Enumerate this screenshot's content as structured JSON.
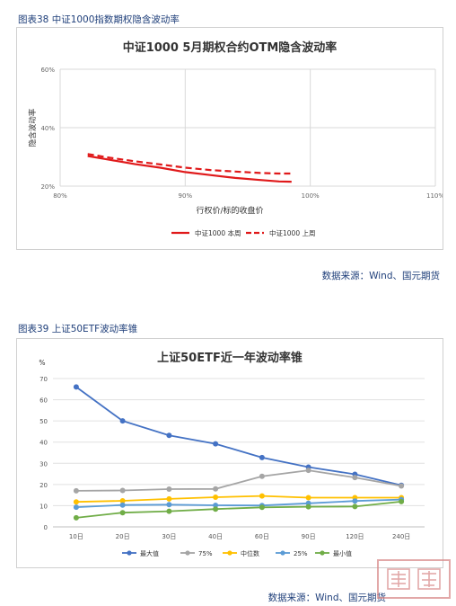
{
  "figure1": {
    "caption": "图表38 中证1000指数期权隐含波动率",
    "source": "数据来源：Wind、国元期货"
  },
  "figure2": {
    "caption": "图表39 上证50ETF波动率锥",
    "source": "数据来源：Wind、国元期货"
  },
  "colors": {
    "caption": "#1f3f7a",
    "series_weekly": "#e0191a",
    "max": "#4472c4",
    "p75": "#a5a5a5",
    "median": "#ffc000",
    "p25": "#5b9bd5",
    "min": "#70ad47"
  },
  "chart_data": [
    {
      "type": "line",
      "title": "中证1000 5月期权合约OTM隐含波动率",
      "xlabel": "行权价/标的收盘价",
      "ylabel": "隐含波动率",
      "xlim": [
        0.8,
        1.1
      ],
      "ylim": [
        0.2,
        0.6
      ],
      "x_ticks": [
        0.8,
        0.9,
        1.0,
        1.1
      ],
      "x_tick_labels": [
        "80%",
        "90%",
        "100%",
        "110%"
      ],
      "y_ticks": [
        0.2,
        0.4,
        0.6
      ],
      "y_tick_labels": [
        "20%",
        "40%",
        "60%"
      ],
      "grid": true,
      "legend_position": "bottom",
      "series": [
        {
          "name": "中证1000 本周",
          "style": "solid",
          "x": [
            0.822,
            0.84,
            0.86,
            0.88,
            0.9,
            0.92,
            0.94,
            0.96,
            0.975,
            0.985
          ],
          "y": [
            0.303,
            0.29,
            0.275,
            0.263,
            0.248,
            0.238,
            0.228,
            0.221,
            0.216,
            0.215
          ]
        },
        {
          "name": "中证1000 上周",
          "style": "dashed",
          "x": [
            0.822,
            0.84,
            0.86,
            0.88,
            0.9,
            0.92,
            0.94,
            0.96,
            0.975,
            0.985
          ],
          "y": [
            0.31,
            0.297,
            0.285,
            0.274,
            0.263,
            0.255,
            0.25,
            0.245,
            0.243,
            0.243
          ]
        }
      ]
    },
    {
      "type": "line",
      "title": "上证50ETF近一年波动率锥",
      "ylabel": "%",
      "categories": [
        "10日",
        "20日",
        "30日",
        "40日",
        "60日",
        "90日",
        "120日",
        "240日"
      ],
      "ylim": [
        0,
        70
      ],
      "y_ticks": [
        0,
        10,
        20,
        30,
        40,
        50,
        60,
        70
      ],
      "grid": true,
      "legend_position": "bottom",
      "series": [
        {
          "name": "最大值",
          "values": [
            66.0,
            50.0,
            43.2,
            39.2,
            32.7,
            28.2,
            24.8,
            19.6
          ]
        },
        {
          "name": "75%",
          "values": [
            17.0,
            17.2,
            17.8,
            17.9,
            23.9,
            26.7,
            23.3,
            19.3
          ]
        },
        {
          "name": "中位数",
          "values": [
            11.8,
            12.3,
            13.2,
            14.0,
            14.6,
            13.8,
            13.8,
            13.8
          ]
        },
        {
          "name": "25%",
          "values": [
            9.3,
            10.3,
            10.5,
            10.2,
            10.1,
            11.1,
            12.2,
            12.9
          ]
        },
        {
          "name": "最小值",
          "values": [
            4.3,
            6.7,
            7.4,
            8.4,
            9.2,
            9.5,
            9.6,
            11.9
          ]
        }
      ]
    }
  ],
  "stamp": {
    "text": "浅龍"
  }
}
